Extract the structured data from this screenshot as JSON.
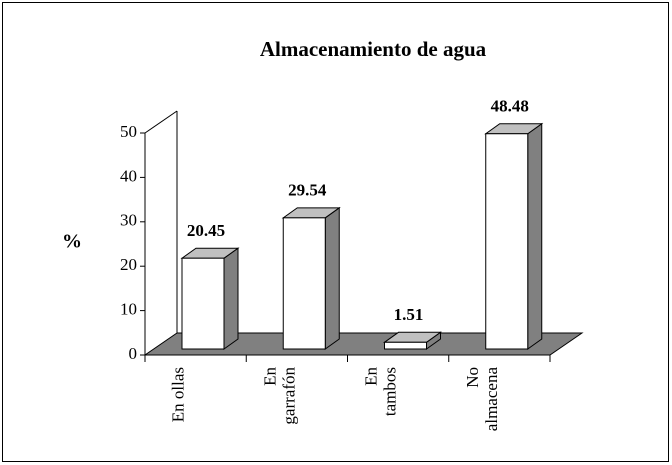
{
  "chart_data": {
    "type": "bar3d",
    "title": "Almacenamiento de agua",
    "y_label": "%",
    "categories": [
      [
        "En ollas"
      ],
      [
        "En",
        "garrafón"
      ],
      [
        "En",
        "tambos"
      ],
      [
        "No",
        "almacena"
      ]
    ],
    "values": [
      20.45,
      29.54,
      1.51,
      48.48
    ],
    "ylim": [
      0,
      50
    ],
    "yticks": [
      0,
      10,
      20,
      30,
      40,
      50
    ],
    "color": "#ffffff",
    "side_color": "#808080",
    "top_color": "#c0c0c0",
    "floor_color": "#808080"
  }
}
